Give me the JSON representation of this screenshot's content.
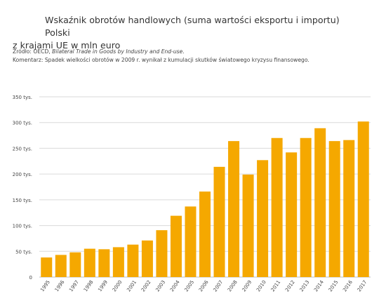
{
  "header": {
    "title_line1": "Wskaźnik obrotów handlowych (suma wartości eksportu i importu) Polski",
    "title_line2": "z krajami UE w mln euro",
    "source_prefix": "Źródło: OECD, ",
    "source_title": "Bilateral Trade in Goods by Industry and End-use",
    "source_suffix": ".",
    "comment": "Komentarz: Spadek wielkości obrotów w 2009 r. wynikał z kumulacji skutków światowego kryzysu finansowego."
  },
  "chart_data": {
    "type": "bar",
    "title": "Wskaźnik obrotów handlowych (suma wartości eksportu i importu) Polski z krajami UE w mln euro",
    "xlabel": "",
    "ylabel": "",
    "categories": [
      "1995",
      "1996",
      "1997",
      "1998",
      "1999",
      "2000",
      "2001",
      "2002",
      "2003",
      "2004",
      "2005",
      "2006",
      "2007",
      "2008",
      "2009",
      "2010",
      "2011",
      "2012",
      "2013",
      "2014",
      "2015",
      "2016",
      "2017"
    ],
    "values": [
      38000,
      43000,
      48000,
      55000,
      54000,
      58000,
      63000,
      71000,
      91000,
      119000,
      137000,
      166000,
      214000,
      264000,
      199000,
      227000,
      270000,
      242000,
      270000,
      289000,
      264000,
      266000,
      302000
    ],
    "ylim": [
      0,
      350000
    ],
    "yticks": [
      0,
      50000,
      100000,
      150000,
      200000,
      250000,
      300000,
      350000
    ],
    "ytick_labels": [
      "0",
      "50 tys.",
      "100 tys.",
      "150 tys.",
      "200 tys.",
      "250 tys.",
      "300 tys.",
      "350 tys."
    ],
    "grid": true,
    "bar_color": "#F5A800",
    "grid_color": "#DADADA"
  }
}
